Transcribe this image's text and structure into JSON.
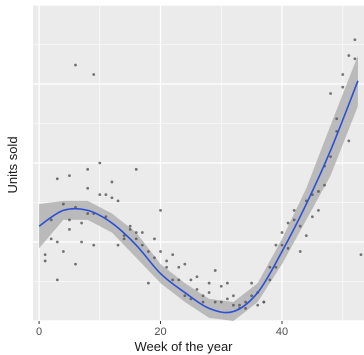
{
  "chart_data": {
    "type": "scatter",
    "title": "",
    "xlabel": "Week of the year",
    "ylabel": "Units sold",
    "xlim": [
      -1,
      53.5
    ],
    "ylim": [
      0,
      100
    ],
    "x_ticks": [
      0,
      20,
      40
    ],
    "y_ticks_labeled": false,
    "grid": true,
    "legend": "none",
    "colors": {
      "panel": "#ebebeb",
      "grid": "#ffffff",
      "points": "#555555",
      "smooth_line": "#2b4fd6",
      "confidence_band": "#aaaaaa"
    },
    "series": [
      {
        "type": "scatter",
        "x": [
          1,
          1,
          2,
          2,
          3,
          3,
          3,
          4,
          4,
          5,
          5,
          5,
          6,
          6,
          6,
          7,
          7,
          8,
          8,
          8,
          9,
          9,
          9,
          10,
          10,
          11,
          11,
          12,
          12,
          13,
          13,
          14,
          14,
          15,
          15,
          16,
          16,
          16,
          17,
          17,
          18,
          18,
          19,
          19,
          20,
          20,
          21,
          21,
          22,
          22,
          23,
          23,
          24,
          24,
          25,
          25,
          26,
          26,
          27,
          27,
          28,
          28,
          29,
          29,
          30,
          30,
          31,
          31,
          32,
          32,
          33,
          33,
          34,
          34,
          35,
          35,
          36,
          36,
          37,
          37,
          38,
          38,
          39,
          39,
          40,
          40,
          41,
          41,
          42,
          42,
          43,
          43,
          44,
          44,
          45,
          45,
          46,
          46,
          47,
          47,
          48,
          48,
          49,
          49,
          50,
          50,
          51,
          51,
          52,
          52,
          53
        ],
        "y": [
          21,
          19,
          26,
          32,
          45,
          25,
          13,
          22,
          37,
          29,
          46,
          32,
          81,
          18,
          36,
          31,
          25,
          42,
          34,
          48,
          34,
          24,
          78,
          50,
          40,
          40,
          33,
          44,
          39,
          38,
          24,
          26,
          27,
          30,
          29,
          26,
          28,
          48,
          28,
          24,
          12,
          22,
          26,
          20,
          35,
          22,
          19,
          17,
          21,
          13,
          13,
          17,
          18,
          8,
          13,
          7,
          14,
          10,
          6,
          8,
          12,
          9,
          16,
          6,
          6,
          11,
          12,
          7,
          5,
          8,
          5,
          4,
          6,
          4,
          8,
          12,
          9,
          5,
          6,
          6,
          17,
          13,
          24,
          17,
          24,
          28,
          31,
          23,
          32,
          35,
          22,
          30,
          38,
          27,
          33,
          40,
          35,
          41,
          49,
          43,
          52,
          72,
          60,
          64,
          78,
          74,
          84,
          57,
          89,
          83,
          21
        ]
      },
      {
        "type": "line",
        "name": "",
        "x": [
          0,
          4,
          8,
          12,
          16,
          20,
          24,
          28,
          32,
          36,
          40,
          44,
          48,
          52.5
        ],
        "y": [
          30,
          35,
          35,
          31,
          24,
          15,
          9,
          4,
          3,
          9,
          22,
          37,
          54,
          76
        ],
        "band_low": [
          23,
          32,
          32,
          28,
          20,
          12,
          6,
          1,
          0,
          6,
          18,
          32,
          46,
          68
        ],
        "band_high": [
          37,
          38,
          38,
          34,
          28,
          18,
          12,
          7,
          6,
          12,
          26,
          42,
          62,
          84
        ]
      }
    ]
  }
}
